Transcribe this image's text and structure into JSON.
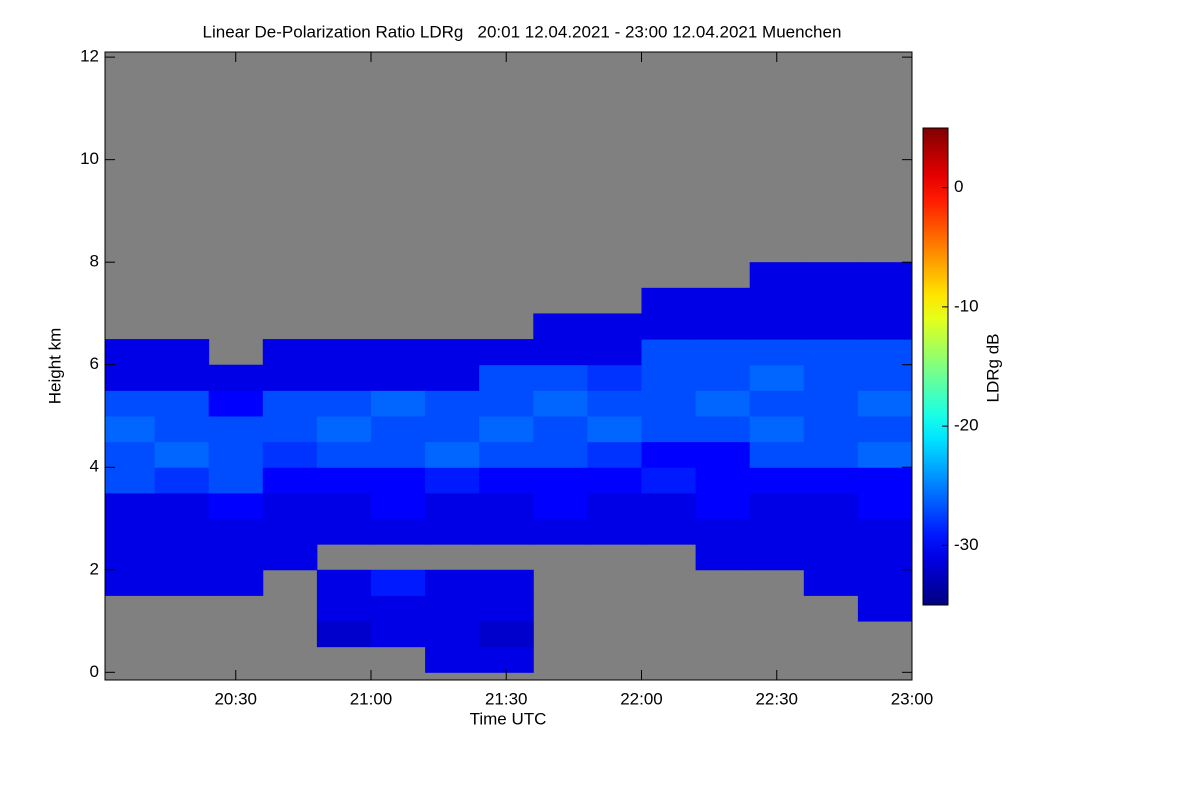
{
  "chart_data": {
    "type": "heatmap",
    "title": "Linear De-Polarization Ratio LDRg   20:01 12.04.2021 - 23:00 12.04.2021 Muenchen",
    "x_label": "Time UTC",
    "y_label": "Height km",
    "colorbar_label": "LDRg dB",
    "colormap": "jet",
    "null_color": "#808080",
    "xlim": [
      20.0167,
      23.0
    ],
    "xticks": [
      {
        "value": 20.5,
        "label": "20:30"
      },
      {
        "value": 21.0,
        "label": "21:00"
      },
      {
        "value": 21.5,
        "label": "21:30"
      },
      {
        "value": 22.0,
        "label": "22:00"
      },
      {
        "value": 22.5,
        "label": "22:30"
      },
      {
        "value": 23.0,
        "label": "23:00"
      }
    ],
    "ylim": [
      -0.15,
      12.1
    ],
    "yticks": [
      0,
      2,
      4,
      6,
      8,
      10,
      12
    ],
    "clim": [
      -35,
      5
    ],
    "cticks": [
      0,
      -10,
      -20,
      -30
    ],
    "x": [
      20.1,
      20.3,
      20.5,
      20.7,
      20.9,
      21.1,
      21.3,
      21.5,
      21.7,
      21.9,
      22.1,
      22.3,
      22.5,
      22.7,
      22.9
    ],
    "y": [
      0.25,
      0.75,
      1.25,
      1.75,
      2.25,
      2.75,
      3.25,
      3.75,
      4.25,
      4.75,
      5.25,
      5.75,
      6.25,
      6.75,
      7.25,
      7.75
    ],
    "z": [
      [
        null,
        null,
        null,
        null,
        null,
        null,
        -31,
        -31,
        null,
        null,
        null,
        null,
        null,
        null,
        null
      ],
      [
        null,
        null,
        null,
        null,
        -32,
        -31,
        -31,
        -32,
        null,
        null,
        null,
        null,
        null,
        null,
        null
      ],
      [
        null,
        null,
        null,
        null,
        -31,
        -31,
        -31,
        -31,
        null,
        null,
        null,
        null,
        null,
        null,
        -31
      ],
      [
        -31,
        -31,
        -31,
        null,
        -31,
        -29,
        -31,
        -31,
        null,
        null,
        null,
        null,
        null,
        -31,
        -31
      ],
      [
        -31,
        -31,
        -31,
        -31,
        null,
        null,
        null,
        null,
        null,
        null,
        null,
        -31,
        -31,
        -31,
        -31
      ],
      [
        -31,
        -31,
        -31,
        -31,
        -31,
        -31,
        -31,
        -31,
        -31,
        -31,
        -31,
        -31,
        -31,
        -31,
        -31
      ],
      [
        -31,
        -31,
        -30,
        -31,
        -31,
        -30,
        -31,
        -31,
        -30,
        -31,
        -31,
        -30,
        -31,
        -31,
        -30
      ],
      [
        -27,
        -28,
        -27,
        -30,
        -30,
        -30,
        -29,
        -30,
        -30,
        -30,
        -29,
        -30,
        -30,
        -30,
        -30
      ],
      [
        -27,
        -26,
        -27,
        -28,
        -27,
        -27,
        -26,
        -27,
        -27,
        -28,
        -30,
        -30,
        -27,
        -27,
        -26
      ],
      [
        -26,
        -27,
        -27,
        -27,
        -26,
        -27,
        -27,
        -26,
        -27,
        -26,
        -27,
        -27,
        -26,
        -27,
        -27
      ],
      [
        -27,
        -27,
        -30,
        -27,
        -27,
        -26,
        -27,
        -27,
        -26,
        -27,
        -27,
        -26,
        -27,
        -27,
        -26
      ],
      [
        -31,
        -31,
        -31,
        -31,
        -31,
        -31,
        -31,
        -27,
        -27,
        -28,
        -27,
        -27,
        -26,
        -27,
        -27
      ],
      [
        -31,
        -31,
        null,
        -31,
        -31,
        -31,
        -31,
        -31,
        -31,
        -31,
        -27,
        -27,
        -27,
        -27,
        -27
      ],
      [
        null,
        null,
        null,
        null,
        null,
        null,
        null,
        null,
        -31,
        -31,
        -31,
        -31,
        -31,
        -31,
        -31
      ],
      [
        null,
        null,
        null,
        null,
        null,
        null,
        null,
        null,
        null,
        null,
        -31,
        -31,
        -31,
        -31,
        -31
      ],
      [
        null,
        null,
        null,
        null,
        null,
        null,
        null,
        null,
        null,
        null,
        null,
        null,
        -31,
        -31,
        -31
      ]
    ]
  }
}
